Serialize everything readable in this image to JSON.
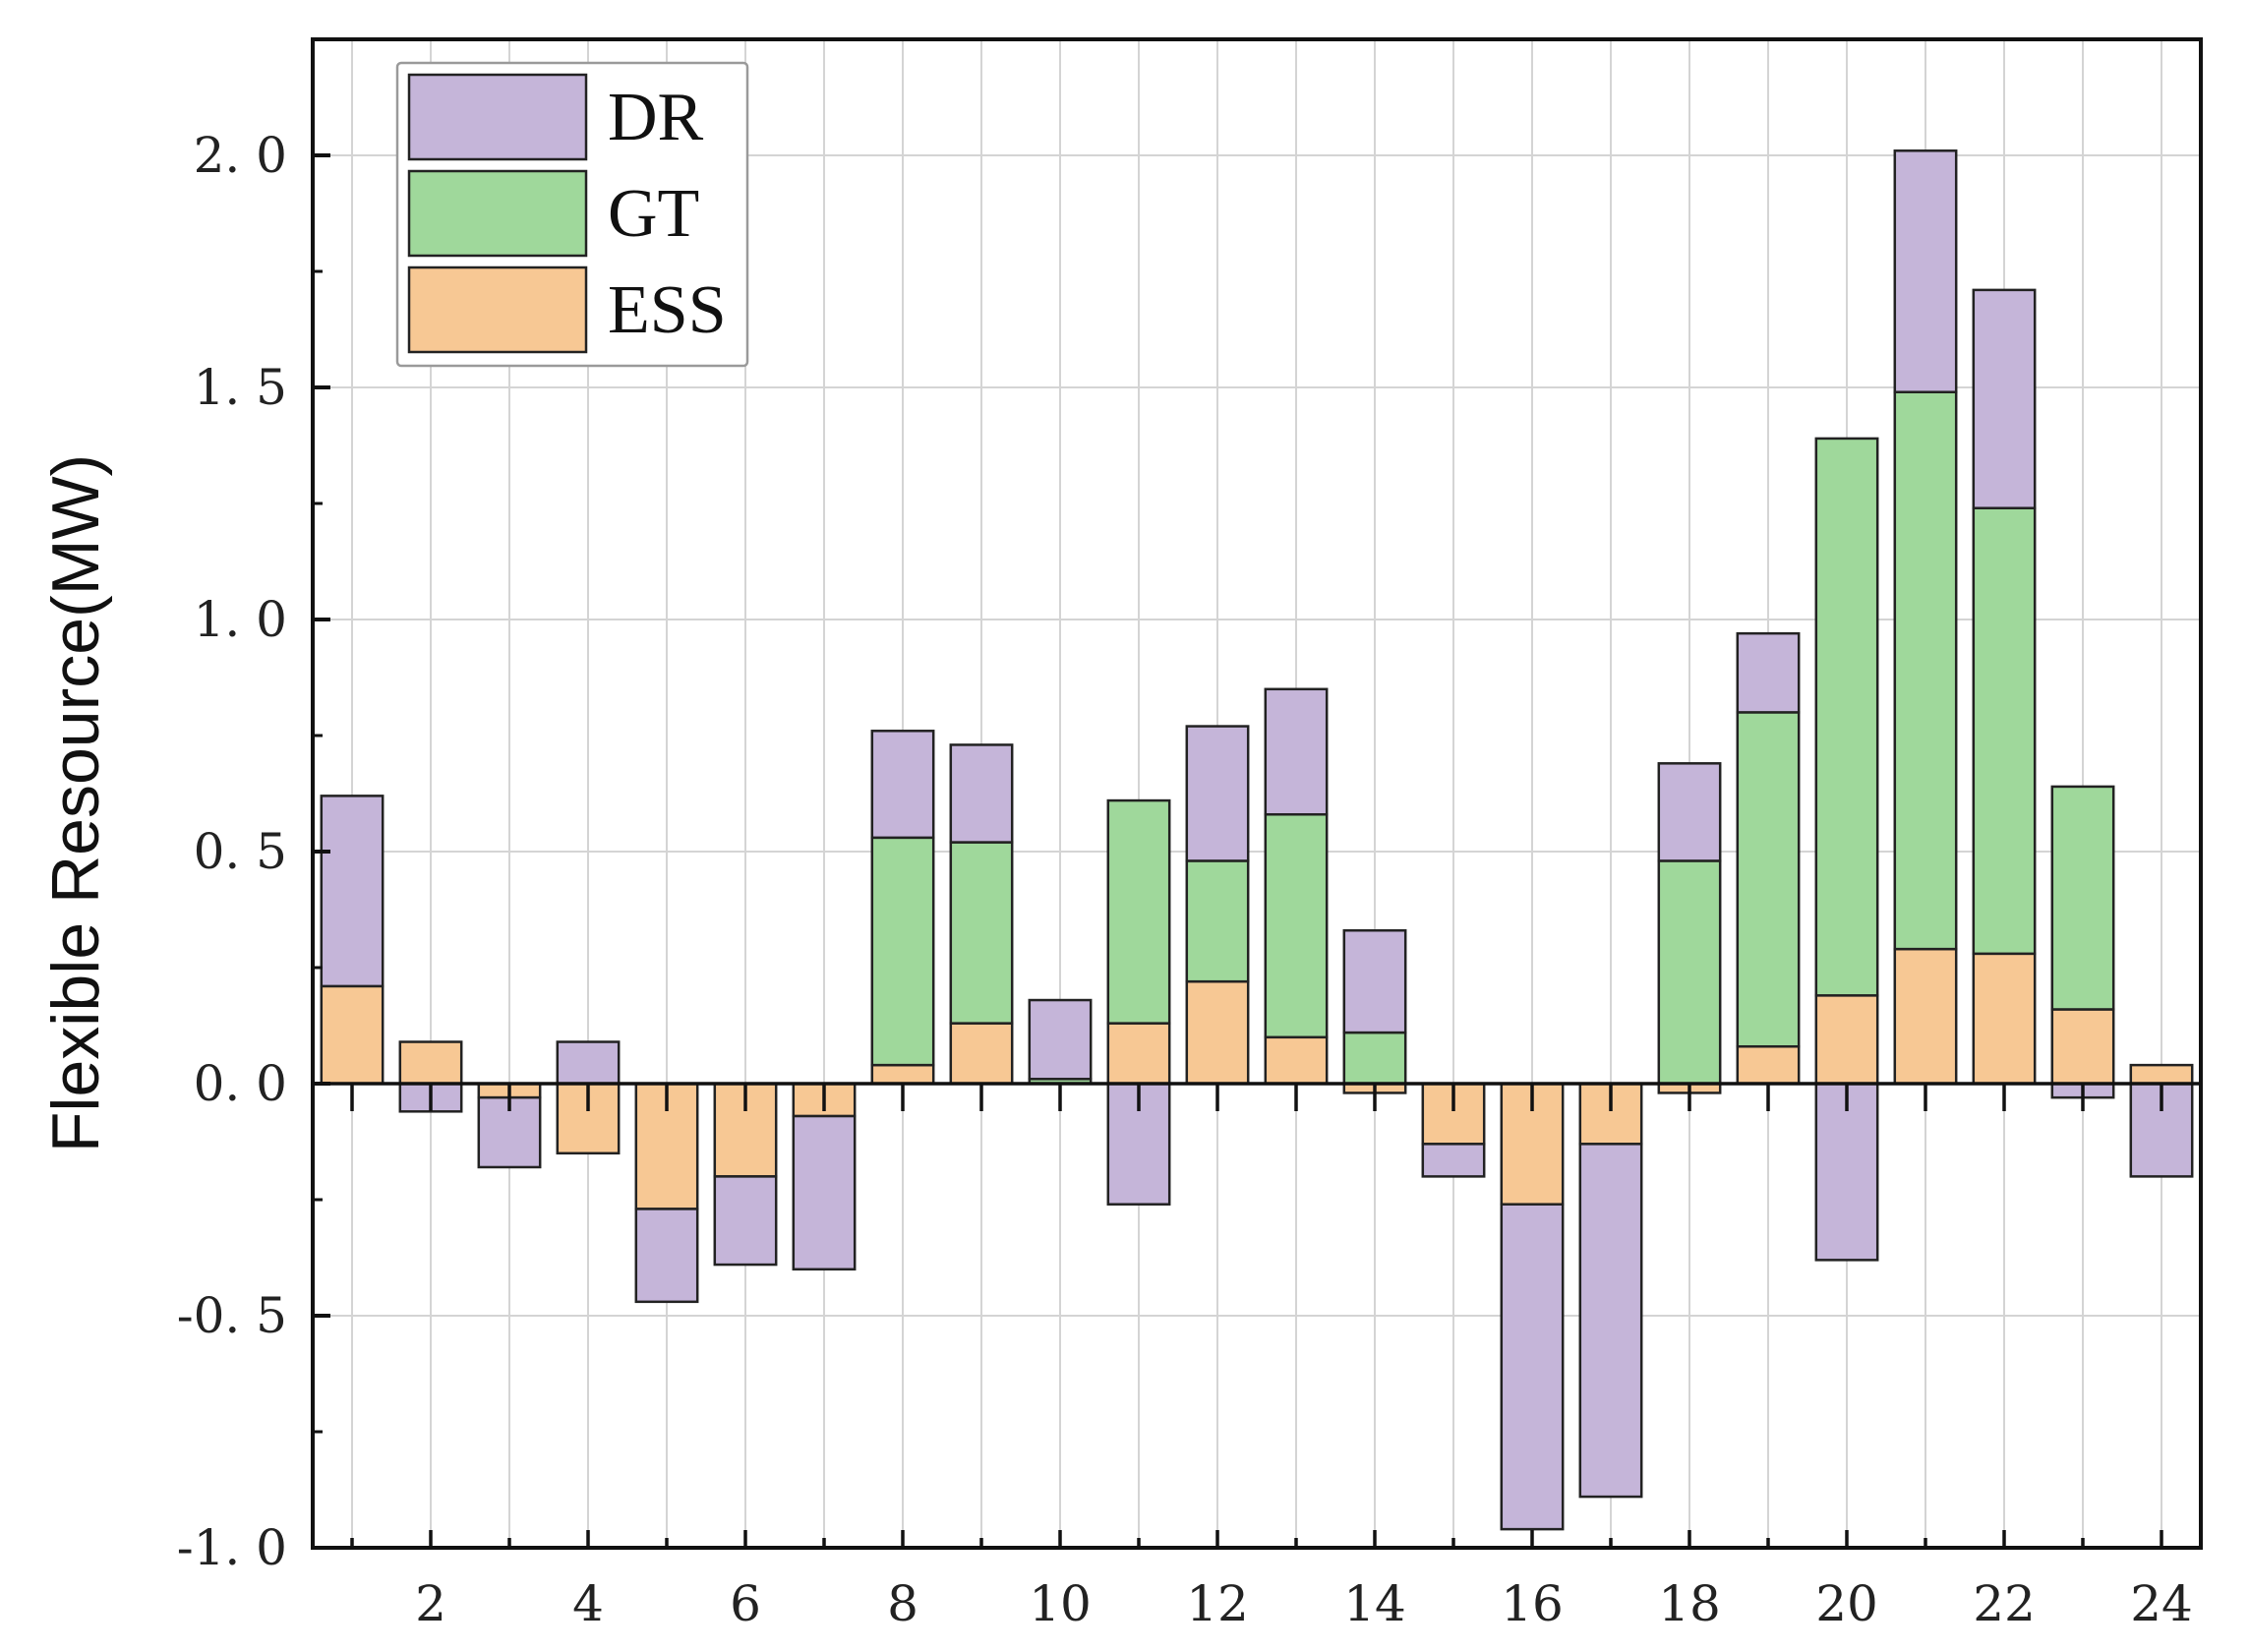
{
  "chart_data": {
    "type": "bar",
    "stacked": true,
    "title": "",
    "xlabel": "",
    "ylabel": "Flexible Resource(MW)",
    "ylim": [
      -1.0,
      2.25
    ],
    "xlim": [
      0.5,
      24.5
    ],
    "grid": true,
    "legend_position": "top-left",
    "x": [
      1,
      2,
      3,
      4,
      5,
      6,
      7,
      8,
      9,
      10,
      11,
      12,
      13,
      14,
      15,
      16,
      17,
      18,
      19,
      20,
      21,
      22,
      23,
      24
    ],
    "x_tick_values": [
      2,
      4,
      6,
      8,
      10,
      12,
      14,
      16,
      18,
      20,
      22,
      24
    ],
    "x_tick_labels": [
      "2",
      "4",
      "6",
      "8",
      "10",
      "12",
      "14",
      "16",
      "18",
      "20",
      "22",
      "24"
    ],
    "y_tick_values": [
      -1.0,
      -0.5,
      0.0,
      0.5,
      1.0,
      1.5,
      2.0
    ],
    "y_tick_labels": [
      "-1. 0",
      "-0. 5",
      "0. 0",
      "0. 5",
      "1. 0",
      "1. 5",
      "2. 0"
    ],
    "series": [
      {
        "name": "ESS",
        "color": "#f7c894",
        "values": [
          0.21,
          0.09,
          -0.03,
          -0.15,
          -0.27,
          -0.2,
          -0.07,
          0.04,
          0.13,
          0.0,
          0.13,
          0.22,
          0.1,
          -0.02,
          -0.13,
          -0.26,
          -0.13,
          -0.02,
          0.08,
          0.19,
          0.29,
          0.28,
          0.16,
          0.04
        ]
      },
      {
        "name": "GT",
        "color": "#9fd89b",
        "values": [
          0,
          0,
          0,
          0,
          0,
          0,
          0,
          0.49,
          0.39,
          0.01,
          0.48,
          0.26,
          0.48,
          0.11,
          0,
          0,
          0,
          0.48,
          0.72,
          1.2,
          1.2,
          0.96,
          0.48,
          0
        ]
      },
      {
        "name": "DR",
        "color": "#c5b5d9",
        "values": [
          0.41,
          -0.06,
          -0.15,
          0.09,
          -0.2,
          -0.19,
          -0.33,
          0.23,
          0.21,
          0.17,
          -0.26,
          0.29,
          0.27,
          0.22,
          -0.07,
          -0.7,
          -0.76,
          0.21,
          0.17,
          -0.38,
          0.52,
          0.47,
          -0.03,
          -0.2
        ]
      }
    ],
    "legend_order": [
      "DR",
      "GT",
      "ESS"
    ]
  }
}
